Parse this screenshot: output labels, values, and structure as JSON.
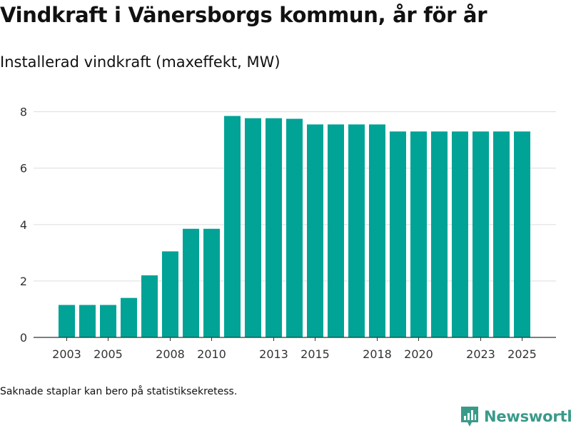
{
  "header": {
    "title": "Vindkraft i Vänersborgs kommun, år för år",
    "subtitle": "Installerad vindkraft (maxeffekt, MW)"
  },
  "footer": {
    "note": "Saknade staplar kan bero på statistiksekretess.",
    "brand": "Newsworthy"
  },
  "colors": {
    "bar": "#00a396",
    "grid": "#dddddd",
    "axis": "#333333",
    "brand": "#3a9a8a"
  },
  "chart_data": {
    "type": "bar",
    "title": "Vindkraft i Vänersborgs kommun, år för år",
    "subtitle": "Installerad vindkraft (maxeffekt, MW)",
    "xlabel": "",
    "ylabel": "",
    "categories": [
      2003,
      2004,
      2005,
      2006,
      2007,
      2008,
      2009,
      2010,
      2011,
      2012,
      2013,
      2014,
      2015,
      2016,
      2017,
      2018,
      2019,
      2020,
      2021,
      2022,
      2023,
      2024,
      2025
    ],
    "values": [
      1.15,
      1.15,
      1.15,
      1.4,
      2.2,
      3.05,
      3.85,
      3.85,
      7.85,
      7.77,
      7.77,
      7.75,
      7.55,
      7.55,
      7.55,
      7.55,
      7.3,
      7.3,
      7.3,
      7.3,
      7.3,
      7.3,
      7.3
    ],
    "xticks": [
      2003,
      2005,
      2008,
      2010,
      2013,
      2015,
      2018,
      2020,
      2023,
      2025
    ],
    "yticks": [
      0,
      2,
      4,
      6,
      8
    ],
    "ylim": [
      0,
      8.8
    ],
    "grid": true,
    "legend": "none"
  }
}
